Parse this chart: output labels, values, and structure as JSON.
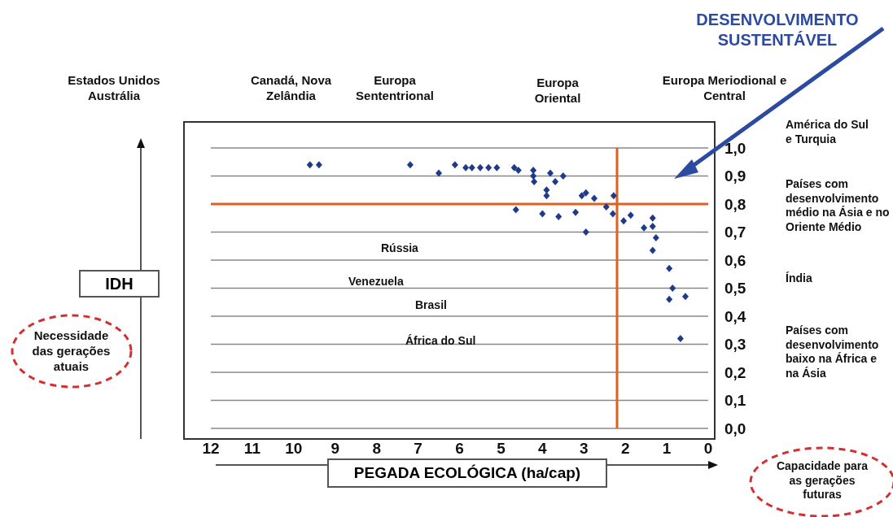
{
  "chart_data": {
    "type": "scatter",
    "xlabel": "PEGADA ECOLÓGICA (ha/cap)",
    "ylabel": "IDH",
    "x": [
      9.61,
      9.39,
      7.19,
      6.5,
      6.11,
      5.85,
      5.7,
      5.5,
      5.3,
      5.1,
      4.68,
      4.58,
      4.22,
      4.22,
      4.2,
      3.81,
      3.69,
      3.5,
      3.9,
      3.9,
      4.64,
      4.0,
      3.61,
      2.95,
      3.2,
      3.05,
      2.95,
      2.75,
      2.28,
      2.46,
      2.3,
      2.04,
      1.87,
      1.34,
      1.55,
      1.34,
      1.26,
      1.34,
      0.94,
      0.86,
      0.55,
      0.94,
      0.67
    ],
    "values": [
      0.94,
      0.94,
      0.94,
      0.91,
      0.94,
      0.93,
      0.93,
      0.93,
      0.93,
      0.93,
      0.93,
      0.92,
      0.92,
      0.9,
      0.88,
      0.91,
      0.88,
      0.9,
      0.85,
      0.83,
      0.78,
      0.765,
      0.755,
      0.7,
      0.77,
      0.83,
      0.84,
      0.82,
      0.83,
      0.79,
      0.765,
      0.74,
      0.76,
      0.75,
      0.715,
      0.72,
      0.68,
      0.635,
      0.57,
      0.5,
      0.47,
      0.46,
      0.32
    ],
    "color": "#1f3a8a",
    "marker": "diamond",
    "xlim": [
      12,
      0
    ],
    "xticks": [
      12,
      11,
      10,
      9,
      8,
      7,
      6,
      5,
      4,
      3,
      2,
      1,
      0
    ],
    "ylim": [
      0,
      1.0
    ],
    "yticks": [
      {
        "value": 0,
        "label": "0,0"
      },
      {
        "value": 0.1,
        "label": "0,1"
      },
      {
        "value": 0.2,
        "label": "0,2"
      },
      {
        "value": 0.3,
        "label": "0,3"
      },
      {
        "value": 0.4,
        "label": "0,4"
      },
      {
        "value": 0.5,
        "label": "0,5"
      },
      {
        "value": 0.6,
        "label": "0,6"
      },
      {
        "value": 0.7,
        "label": "0,7"
      },
      {
        "value": 0.8,
        "label": "0,8"
      },
      {
        "value": 0.9,
        "label": "0,9"
      },
      {
        "value": 1.0,
        "label": "1,0"
      }
    ],
    "grid": "y",
    "ref_lines": [
      {
        "axis": "x",
        "value": 2.2,
        "color": "#e0601f"
      },
      {
        "axis": "y",
        "value": 0.8,
        "color": "#e0601f"
      }
    ],
    "annotations": [
      "DESENVOLVIMENTO SUSTENTÁVEL",
      "Estados Unidos Austrália",
      "Canadá, Nova Zelândia",
      "Europa Sententrional",
      "Europa Oriental",
      "Europa Meriodional e Central",
      "América do Sul e Turquia",
      "Países com desenvolvimento médio na Ásia e no Oriente Médio",
      "Índia",
      "Países com desenvolvimento baixo na África e na Ásia",
      "Rússia",
      "Venezuela",
      "Brasil",
      "África do Sul",
      "Necessidade das gerações atuais",
      "Capacidade para as gerações futuras"
    ]
  }
}
